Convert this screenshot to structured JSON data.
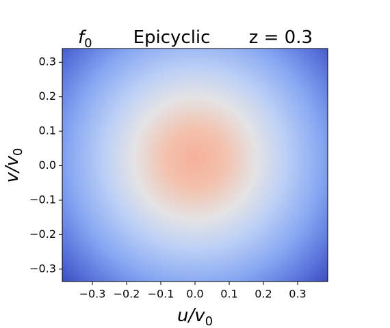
{
  "chart_data": {
    "type": "heatmap",
    "title_left": {
      "text": "f",
      "subscript": "0"
    },
    "title": "Epicyclic",
    "title_right": "z = 0.3",
    "x_label": {
      "text": "u/v",
      "subscript": "0"
    },
    "y_label": {
      "text": "v/v",
      "subscript": "0"
    },
    "xlim": [
      -0.388,
      0.388
    ],
    "ylim": [
      -0.336,
      0.34
    ],
    "xticks": [
      {
        "value": -0.3,
        "label": "−0.3"
      },
      {
        "value": -0.2,
        "label": "−0.2"
      },
      {
        "value": -0.1,
        "label": "−0.1"
      },
      {
        "value": 0,
        "label": "0.0"
      },
      0.1,
      0.2,
      0.3
    ],
    "yticks": [
      {
        "value": -0.3,
        "label": "−0.3"
      },
      {
        "value": -0.2,
        "label": "−0.2"
      },
      {
        "value": -0.1,
        "label": "−0.1"
      },
      {
        "value": 0,
        "label": "0.0"
      },
      0.1,
      0.2,
      0.3
    ]
  }
}
